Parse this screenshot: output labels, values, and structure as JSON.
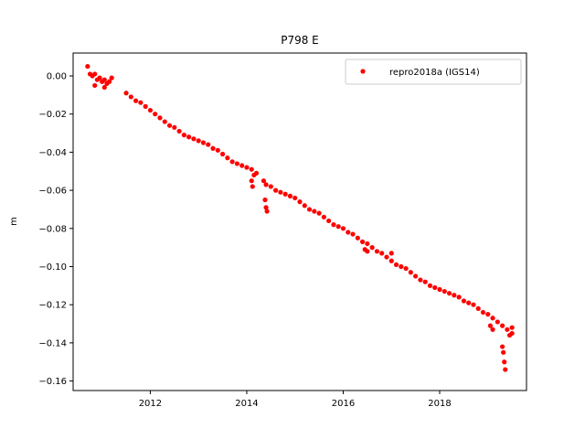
{
  "chart_data": {
    "type": "scatter",
    "title": "P798 E",
    "xlabel": "",
    "ylabel": "m",
    "xlim": [
      2010.4,
      2019.8
    ],
    "ylim": [
      -0.165,
      0.012
    ],
    "x_ticks": [
      2012,
      2014,
      2016,
      2018
    ],
    "x_tick_labels": [
      "2012",
      "2014",
      "2016",
      "2018"
    ],
    "y_ticks": [
      0.0,
      -0.02,
      -0.04,
      -0.06,
      -0.08,
      -0.1,
      -0.12,
      -0.14,
      -0.16
    ],
    "y_tick_labels": [
      "0.00",
      "−0.02",
      "−0.04",
      "−0.06",
      "−0.08",
      "−0.10",
      "−0.12",
      "−0.14",
      "−0.16"
    ],
    "grid": false,
    "legend_position": "top-right",
    "series": [
      {
        "name": "repro2018a (IGS14)",
        "color": "#ff0000",
        "marker": "circle",
        "x": [
          2010.75,
          2010.8,
          2010.85,
          2010.9,
          2010.95,
          2011.0,
          2011.05,
          2011.1,
          2011.15,
          2011.2,
          2011.5,
          2011.6,
          2011.7,
          2011.8,
          2011.9,
          2012.0,
          2012.1,
          2012.2,
          2012.3,
          2012.4,
          2012.5,
          2012.6,
          2012.7,
          2012.8,
          2012.9,
          2013.0,
          2013.1,
          2013.2,
          2013.3,
          2013.4,
          2013.5,
          2013.6,
          2013.7,
          2013.8,
          2013.9,
          2014.0,
          2014.1,
          2014.2,
          2014.35,
          2014.4,
          2014.5,
          2014.6,
          2014.7,
          2014.8,
          2014.9,
          2015.0,
          2015.1,
          2015.2,
          2015.3,
          2015.4,
          2015.5,
          2015.6,
          2015.7,
          2015.8,
          2015.9,
          2016.0,
          2016.1,
          2016.2,
          2016.3,
          2016.4,
          2016.5,
          2016.6,
          2016.7,
          2016.8,
          2016.9,
          2017.0,
          2017.1,
          2017.2,
          2017.3,
          2017.4,
          2017.5,
          2017.6,
          2017.7,
          2017.8,
          2017.9,
          2018.0,
          2018.1,
          2018.2,
          2018.3,
          2018.4,
          2018.5,
          2018.6,
          2018.7,
          2018.8,
          2018.9,
          2019.0,
          2019.1,
          2019.2,
          2019.3,
          2019.4,
          2019.5
        ],
        "y": [
          0.001,
          0.0,
          0.001,
          -0.002,
          -0.001,
          -0.003,
          -0.002,
          -0.004,
          -0.003,
          -0.001,
          -0.009,
          -0.011,
          -0.013,
          -0.014,
          -0.016,
          -0.018,
          -0.02,
          -0.022,
          -0.024,
          -0.026,
          -0.027,
          -0.029,
          -0.031,
          -0.032,
          -0.033,
          -0.034,
          -0.035,
          -0.036,
          -0.038,
          -0.039,
          -0.041,
          -0.043,
          -0.045,
          -0.046,
          -0.047,
          -0.048,
          -0.049,
          -0.051,
          -0.055,
          -0.057,
          -0.058,
          -0.06,
          -0.061,
          -0.062,
          -0.063,
          -0.064,
          -0.066,
          -0.068,
          -0.07,
          -0.071,
          -0.072,
          -0.074,
          -0.076,
          -0.078,
          -0.079,
          -0.08,
          -0.082,
          -0.083,
          -0.085,
          -0.087,
          -0.088,
          -0.09,
          -0.092,
          -0.093,
          -0.095,
          -0.097,
          -0.099,
          -0.1,
          -0.101,
          -0.103,
          -0.105,
          -0.107,
          -0.108,
          -0.11,
          -0.111,
          -0.112,
          -0.113,
          -0.114,
          -0.115,
          -0.116,
          -0.118,
          -0.119,
          -0.12,
          -0.122,
          -0.124,
          -0.125,
          -0.127,
          -0.129,
          -0.131,
          -0.133,
          -0.135
        ]
      },
      {
        "name": "",
        "color": "#ff0000",
        "marker": "circle",
        "x": [
          2010.7,
          2010.85,
          2011.05,
          2014.1,
          2014.12,
          2014.15,
          2014.38,
          2014.4,
          2014.42,
          2016.45,
          2016.5,
          2017.0,
          2019.05,
          2019.1,
          2019.3,
          2019.32,
          2019.34,
          2019.36,
          2019.45,
          2019.5
        ],
        "y": [
          0.005,
          -0.005,
          -0.006,
          -0.055,
          -0.058,
          -0.052,
          -0.065,
          -0.069,
          -0.071,
          -0.091,
          -0.092,
          -0.093,
          -0.131,
          -0.133,
          -0.142,
          -0.145,
          -0.15,
          -0.154,
          -0.136,
          -0.132
        ]
      }
    ]
  }
}
